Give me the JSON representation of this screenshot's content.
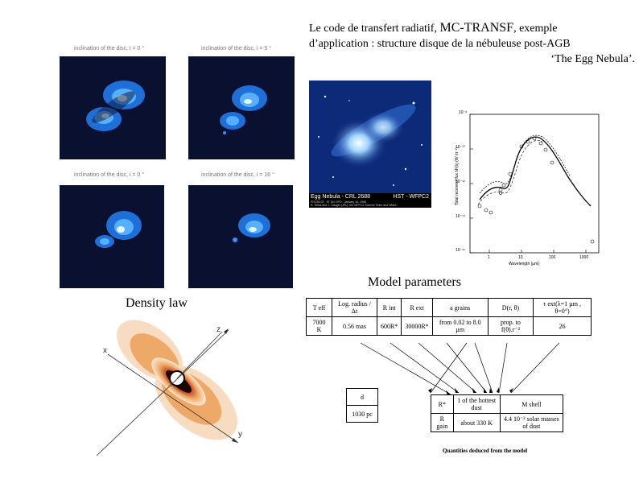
{
  "title": {
    "prefix": "Le code de transfert radiatif,",
    "code_name": "MC-TRANSF",
    "suffix": ", exemple",
    "line2": "d’application : structure disque de la nébuleuse post-AGB",
    "line3": "‘The Egg Nebula’."
  },
  "inclination_panels": [
    {
      "label": "inclination of the disc, i = 0 °"
    },
    {
      "label": "inclination of the disc, i = 5 °"
    },
    {
      "label": "inclination of the disc, i = 0 °"
    },
    {
      "label": "inclination of the disc, i = 16 °"
    }
  ],
  "hst_image": {
    "left_label": "Egg Nebula - CRL 2688",
    "right_label": "HST - WFPC2",
    "credit_line1": "PRC96-03 · ST ScI OPO · January 16, 1996",
    "credit_line2": "R. Sahai and J. Trauger (JPL), the WFPC2 Science Team and NASA"
  },
  "sed_plot": {
    "ylabel": "Total received flux λF(λ) (W m⁻²)",
    "xlabel": "Wavelength (µm)",
    "y_ticks": [
      "10⁻⁸",
      "10⁻¹⁰",
      "10⁻¹²",
      "10⁻¹⁴",
      "10⁻¹⁶"
    ],
    "x_ticks": [
      "1",
      "10",
      "100",
      "1000"
    ]
  },
  "model_parameters_caption": "Model parameters",
  "density_caption": "Density law",
  "density_axes": {
    "z": "z",
    "x": "x",
    "y": "y"
  },
  "param_table": {
    "headers": [
      "T eff",
      "Log. radius / Δt",
      "R int",
      "R ext",
      "a grains",
      "D(r, θ)",
      "τ ext(λ=1 µm , θ=0°)"
    ],
    "values": [
      "7000 K",
      "0.56 mas",
      "600R*",
      "30000R*",
      "from 0.02 to 8.0 µm",
      "prop. to f(θ).r⁻²",
      "26"
    ]
  },
  "dist_table": {
    "header": "d",
    "value": "1030 pc"
  },
  "deduced_table": {
    "row1": [
      "R*",
      "1 of the hottest dust",
      "M shell"
    ],
    "row2": [
      "R gain",
      "about 330 K",
      "4.4 10⁻² solar masses of dust"
    ],
    "caption": "Quantities deduced from the model"
  }
}
